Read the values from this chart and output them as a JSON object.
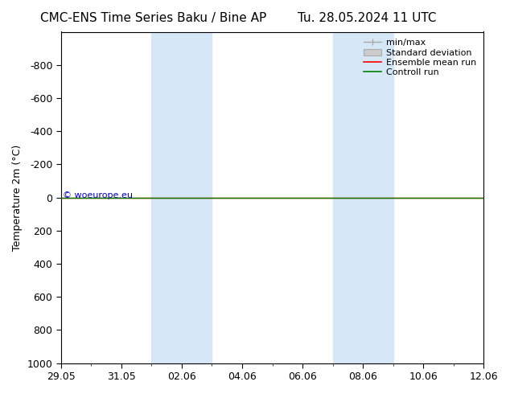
{
  "title_left": "CMC-ENS Time Series Baku / Bine AP",
  "title_right": "Tu. 28.05.2024 11 UTC",
  "ylabel": "Temperature 2m (°C)",
  "ylim_top": -1000,
  "ylim_bottom": 1000,
  "yticks": [
    -800,
    -600,
    -400,
    -200,
    0,
    200,
    400,
    600,
    800,
    1000
  ],
  "xtick_labels": [
    "29.05",
    "31.05",
    "02.06",
    "04.06",
    "06.06",
    "08.06",
    "10.06",
    "12.06"
  ],
  "xtick_positions": [
    0,
    2,
    4,
    6,
    8,
    10,
    12,
    14
  ],
  "x_min": 0,
  "x_max": 14,
  "shaded_bands": [
    {
      "x_start": 3,
      "x_end": 4
    },
    {
      "x_start": 4,
      "x_end": 5
    },
    {
      "x_start": 9,
      "x_end": 10
    },
    {
      "x_start": 10,
      "x_end": 11
    }
  ],
  "shaded_color": "#d6e8f7",
  "ensemble_mean_y": 0,
  "control_run_y": 0,
  "ensemble_mean_color": "#ff0000",
  "control_run_color": "#008000",
  "minmax_color": "#aaaaaa",
  "stddev_color": "#cccccc",
  "watermark": "© woeurope.eu",
  "watermark_color": "#0000cc",
  "legend_entries": [
    "min/max",
    "Standard deviation",
    "Ensemble mean run",
    "Controll run"
  ],
  "legend_colors": [
    "#aaaaaa",
    "#cccccc",
    "#ff0000",
    "#008000"
  ],
  "background_color": "#ffffff",
  "plot_bg_color": "#ffffff",
  "title_fontsize": 11,
  "axis_fontsize": 9,
  "tick_fontsize": 9
}
